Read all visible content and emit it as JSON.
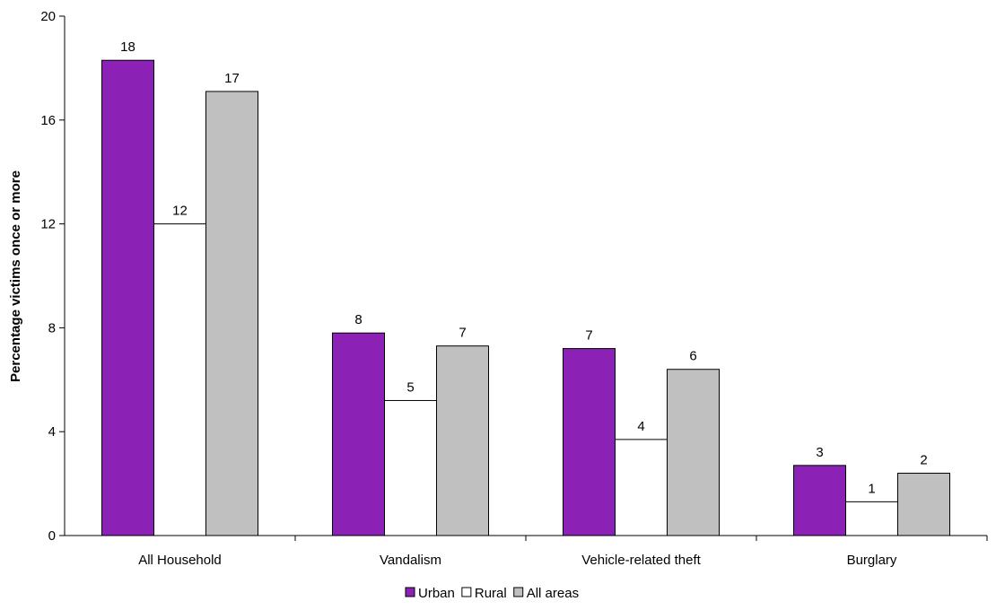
{
  "chart_data": {
    "type": "bar",
    "title": "",
    "xlabel": "",
    "ylabel": "Percentage victims once or more",
    "ylim": [
      0,
      20
    ],
    "yticks": [
      0,
      4,
      8,
      12,
      16,
      20
    ],
    "grid": false,
    "legend_position": "bottom",
    "categories": [
      "All Household",
      "Vandalism",
      "Vehicle-related theft",
      "Burglary"
    ],
    "series": [
      {
        "name": "Urban",
        "color": "#8b22b5",
        "values": [
          18.3,
          7.8,
          7.2,
          2.7
        ],
        "labels": [
          "18",
          "8",
          "7",
          "3"
        ]
      },
      {
        "name": "Rural",
        "color": "#ffffff",
        "values": [
          12.0,
          5.2,
          3.7,
          1.3
        ],
        "labels": [
          "12",
          "5",
          "4",
          "1"
        ]
      },
      {
        "name": "All areas",
        "color": "#c0c0c0",
        "values": [
          17.1,
          7.3,
          6.4,
          2.4
        ],
        "labels": [
          "17",
          "7",
          "6",
          "2"
        ]
      }
    ]
  }
}
